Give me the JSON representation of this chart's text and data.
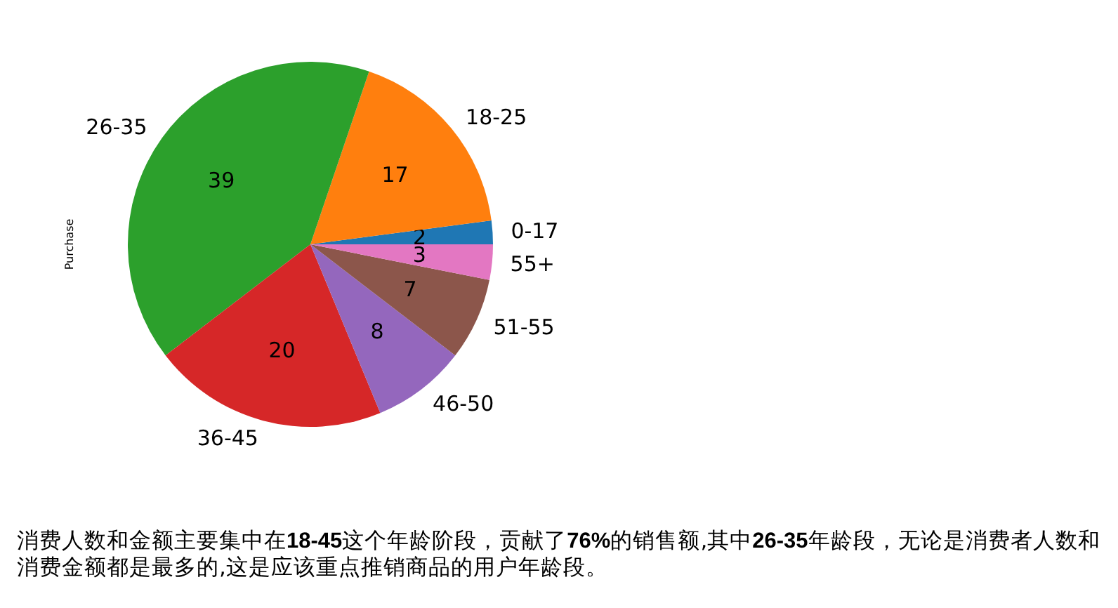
{
  "chart_data": {
    "type": "pie",
    "ylabel": "Purchase",
    "categories": [
      "0-17",
      "18-25",
      "26-35",
      "36-45",
      "46-50",
      "51-55",
      "55+"
    ],
    "values": [
      2,
      17,
      39,
      20,
      8,
      7,
      3
    ],
    "colors": [
      "#1f77b4",
      "#ff7f0e",
      "#2ca02c",
      "#d62728",
      "#9467bd",
      "#8c564b",
      "#e377c2"
    ],
    "data_labels": true,
    "annotations": [
      "消费人数和金额主要集中在**18-45**这个年龄阶段，贡献了**76%**的销售额,其中**26-35**年龄段，无论是消费者人数和消费金额都是最多的,这是应该重点推销商品的用户年龄段。"
    ]
  }
}
